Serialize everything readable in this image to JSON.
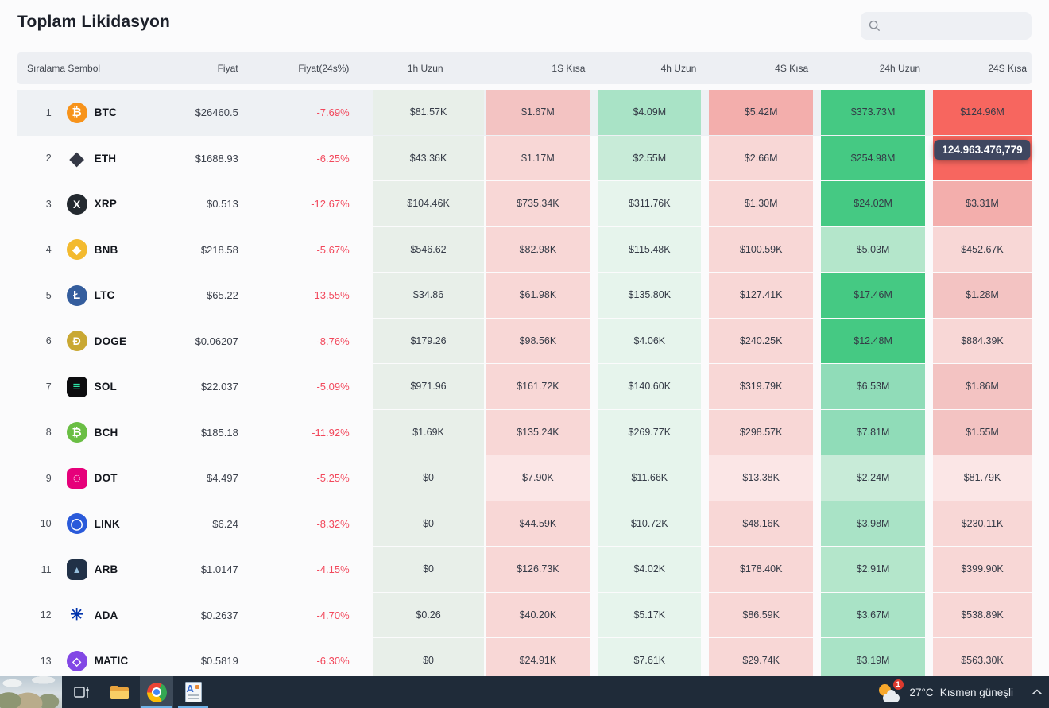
{
  "page": {
    "title": "Toplam Likidasyon"
  },
  "search": {
    "placeholder": ""
  },
  "colors": {
    "g0": "#e8efe9",
    "g1": "#e6f4ec",
    "g2": "#c8ebd8",
    "g25": "#b4e6cb",
    "g3": "#a9e3c6",
    "g35": "#90dcb8",
    "g4": "#45c983",
    "r1": "#fbe6e6",
    "r2": "#f8d7d6",
    "r25": "#f3c3c2",
    "r3": "#f3aeac",
    "r4": "#f7665f",
    "negative_text": "#f2485c",
    "tooltip_bg": "#3f4760",
    "header_bg": "#edeff3",
    "row_highlight": "#eef1f4",
    "taskbar_bg": "#1f2b39",
    "taskbar_active_underline": "#6fb3e8"
  },
  "table": {
    "headers": {
      "rank_symbol": "Sıralama Sembol",
      "price": "Fiyat",
      "change": "Fiyat(24s%)",
      "bands": [
        "1h Uzun",
        "1S Kısa",
        "4h Uzun",
        "4S Kısa",
        "24h Uzun",
        "24S Kısa"
      ]
    },
    "rows": [
      {
        "rank": "1",
        "symbol": "BTC",
        "price": "$26460.5",
        "change": "-7.69%",
        "highlight": true,
        "icon": {
          "shape": "circle",
          "bg": "#f7931a",
          "fg": "#ffffff",
          "glyph": "₿",
          "size": "15px"
        },
        "values": [
          "$81.57K",
          "$1.67M",
          "$4.09M",
          "$5.42M",
          "$373.73M",
          "$124.96M"
        ],
        "levels": [
          "g0",
          "r25",
          "g3",
          "r3",
          "g4",
          "r4"
        ]
      },
      {
        "rank": "2",
        "symbol": "ETH",
        "price": "$1688.93",
        "change": "-6.25%",
        "highlight": false,
        "icon": {
          "shape": "none",
          "bg": "",
          "fg": "#343845",
          "glyph": "◆",
          "size": "23px"
        },
        "values": [
          "$43.36K",
          "$1.17M",
          "$2.55M",
          "$2.66M",
          "$254.98M",
          ""
        ],
        "levels": [
          "g0",
          "r2",
          "g2",
          "r2",
          "g4",
          "r4"
        ]
      },
      {
        "rank": "3",
        "symbol": "XRP",
        "price": "$0.513",
        "change": "-12.67%",
        "highlight": false,
        "icon": {
          "shape": "circle",
          "bg": "#23292f",
          "fg": "#ffffff",
          "glyph": "X",
          "size": "14px"
        },
        "values": [
          "$104.46K",
          "$735.34K",
          "$311.76K",
          "$1.30M",
          "$24.02M",
          "$3.31M"
        ],
        "levels": [
          "g0",
          "r2",
          "g1",
          "r2",
          "g4",
          "r3"
        ]
      },
      {
        "rank": "4",
        "symbol": "BNB",
        "price": "$218.58",
        "change": "-5.67%",
        "highlight": false,
        "icon": {
          "shape": "circle",
          "bg": "#f3ba2f",
          "fg": "#ffffff",
          "glyph": "◆",
          "size": "14px"
        },
        "values": [
          "$546.62",
          "$82.98K",
          "$115.48K",
          "$100.59K",
          "$5.03M",
          "$452.67K"
        ],
        "levels": [
          "g0",
          "r2",
          "g1",
          "r2",
          "g25",
          "r2"
        ]
      },
      {
        "rank": "5",
        "symbol": "LTC",
        "price": "$65.22",
        "change": "-13.55%",
        "highlight": false,
        "icon": {
          "shape": "circle",
          "bg": "#345d9d",
          "fg": "#ffffff",
          "glyph": "Ł",
          "size": "15px"
        },
        "values": [
          "$34.86",
          "$61.98K",
          "$135.80K",
          "$127.41K",
          "$17.46M",
          "$1.28M"
        ],
        "levels": [
          "g0",
          "r2",
          "g1",
          "r2",
          "g4",
          "r25"
        ]
      },
      {
        "rank": "6",
        "symbol": "DOGE",
        "price": "$0.06207",
        "change": "-8.76%",
        "highlight": false,
        "icon": {
          "shape": "circle",
          "bg": "#c9a833",
          "fg": "#ffffff",
          "glyph": "Ð",
          "size": "14px"
        },
        "values": [
          "$179.26",
          "$98.56K",
          "$4.06K",
          "$240.25K",
          "$12.48M",
          "$884.39K"
        ],
        "levels": [
          "g0",
          "r2",
          "g1",
          "r2",
          "g4",
          "r2"
        ]
      },
      {
        "rank": "7",
        "symbol": "SOL",
        "price": "$22.037",
        "change": "-5.09%",
        "highlight": false,
        "icon": {
          "shape": "square",
          "bg": "#0c0c0f",
          "fg": "#2ce5a7",
          "glyph": "≡",
          "size": "17px"
        },
        "values": [
          "$971.96",
          "$161.72K",
          "$140.60K",
          "$319.79K",
          "$6.53M",
          "$1.86M"
        ],
        "levels": [
          "g0",
          "r2",
          "g1",
          "r2",
          "g35",
          "r25"
        ]
      },
      {
        "rank": "8",
        "symbol": "BCH",
        "price": "$185.18",
        "change": "-11.92%",
        "highlight": false,
        "icon": {
          "shape": "circle",
          "bg": "#6abe44",
          "fg": "#ffffff",
          "glyph": "₿",
          "size": "15px"
        },
        "values": [
          "$1.69K",
          "$135.24K",
          "$269.77K",
          "$298.57K",
          "$7.81M",
          "$1.55M"
        ],
        "levels": [
          "g0",
          "r2",
          "g1",
          "r2",
          "g35",
          "r25"
        ]
      },
      {
        "rank": "9",
        "symbol": "DOT",
        "price": "$4.497",
        "change": "-5.25%",
        "highlight": false,
        "icon": {
          "shape": "square",
          "bg": "#e6007a",
          "fg": "#ffffff",
          "glyph": "◌",
          "size": "17px"
        },
        "values": [
          "$0",
          "$7.90K",
          "$11.66K",
          "$13.38K",
          "$2.24M",
          "$81.79K"
        ],
        "levels": [
          "g0",
          "r1",
          "g1",
          "r1",
          "g2",
          "r1"
        ]
      },
      {
        "rank": "10",
        "symbol": "LINK",
        "price": "$6.24",
        "change": "-8.32%",
        "highlight": false,
        "icon": {
          "shape": "circle",
          "bg": "#2a5ada",
          "fg": "#ffffff",
          "glyph": "◯",
          "size": "14px"
        },
        "values": [
          "$0",
          "$44.59K",
          "$10.72K",
          "$48.16K",
          "$3.98M",
          "$230.11K"
        ],
        "levels": [
          "g0",
          "r2",
          "g1",
          "r2",
          "g3",
          "r2"
        ]
      },
      {
        "rank": "11",
        "symbol": "ARB",
        "price": "$1.0147",
        "change": "-4.15%",
        "highlight": false,
        "icon": {
          "shape": "square",
          "bg": "#213147",
          "fg": "#96bedc",
          "glyph": "▲",
          "size": "12px"
        },
        "values": [
          "$0",
          "$126.73K",
          "$4.02K",
          "$178.40K",
          "$2.91M",
          "$399.90K"
        ],
        "levels": [
          "g0",
          "r2",
          "g1",
          "r2",
          "g25",
          "r2"
        ]
      },
      {
        "rank": "12",
        "symbol": "ADA",
        "price": "$0.2637",
        "change": "-4.70%",
        "highlight": false,
        "icon": {
          "shape": "none",
          "bg": "",
          "fg": "#0033ad",
          "glyph": "✳",
          "size": "20px"
        },
        "values": [
          "$0.26",
          "$40.20K",
          "$5.17K",
          "$86.59K",
          "$3.67M",
          "$538.89K"
        ],
        "levels": [
          "g0",
          "r2",
          "g1",
          "r2",
          "g3",
          "r2"
        ]
      },
      {
        "rank": "13",
        "symbol": "MATIC",
        "price": "$0.5819",
        "change": "-6.30%",
        "highlight": false,
        "icon": {
          "shape": "circle",
          "bg": "#8247e5",
          "fg": "#ffffff",
          "glyph": "◇",
          "size": "14px"
        },
        "values": [
          "$0",
          "$24.91K",
          "$7.61K",
          "$29.74K",
          "$3.19M",
          "$563.30K"
        ],
        "levels": [
          "g0",
          "r2",
          "g1",
          "r2",
          "g3",
          "r2"
        ]
      }
    ],
    "tooltip": {
      "text": "124.963.476,779",
      "row_index": 1,
      "band_index": 5
    }
  },
  "taskbar": {
    "temperature": "27°C",
    "condition": "Kısmen güneşli",
    "notification_count": "1"
  }
}
